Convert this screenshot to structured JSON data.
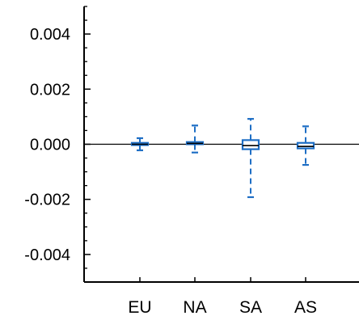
{
  "chart_data": {
    "type": "box",
    "title": "",
    "xlabel": "",
    "ylabel": "",
    "categories": [
      "EU",
      "NA",
      "SA",
      "AS"
    ],
    "ylim": [
      -0.005,
      0.005
    ],
    "y_ticks": [
      -0.004,
      -0.002,
      0.0,
      0.002,
      0.004
    ],
    "y_tick_labels": [
      "-0.004",
      "-0.002",
      "0.000",
      "0.002",
      "0.004"
    ],
    "minor_tick_step": 0.0005,
    "reference_line_y": 0.0,
    "grid": false,
    "box_color": "#1f6fc5",
    "boxes": [
      {
        "category": "EU",
        "whisker_low": -0.00022,
        "q1": -3e-05,
        "median": 0.0,
        "q3": 5e-05,
        "whisker_high": 0.00022
      },
      {
        "category": "NA",
        "whisker_low": -0.0003,
        "q1": 0.0,
        "median": 3e-05,
        "q3": 8e-05,
        "whisker_high": 0.00068
      },
      {
        "category": "SA",
        "whisker_low": -0.00192,
        "q1": -0.00018,
        "median": -5e-05,
        "q3": 0.00015,
        "whisker_high": 0.00092
      },
      {
        "category": "AS",
        "whisker_low": -0.00075,
        "q1": -0.00015,
        "median": -8e-05,
        "q3": 5e-05,
        "whisker_high": 0.00065
      }
    ]
  }
}
